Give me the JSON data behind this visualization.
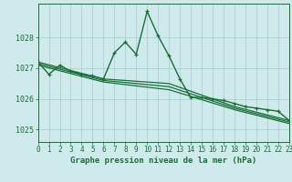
{
  "bg_color": "#ceeaea",
  "grid_color": "#aacccc",
  "line_color": "#1a6e3a",
  "title": "Graphe pression niveau de la mer (hPa)",
  "xlim": [
    0,
    23
  ],
  "ylim": [
    1024.6,
    1029.1
  ],
  "yticks": [
    1025,
    1026,
    1027,
    1028
  ],
  "xticks": [
    0,
    1,
    2,
    3,
    4,
    5,
    6,
    7,
    8,
    9,
    10,
    11,
    12,
    13,
    14,
    15,
    16,
    17,
    18,
    19,
    20,
    21,
    22,
    23
  ],
  "series": [
    {
      "x": [
        0,
        1,
        2,
        3,
        4,
        5,
        6,
        7,
        8,
        9,
        10,
        11,
        12,
        13,
        14,
        15,
        16,
        17,
        18,
        19,
        20,
        21,
        22,
        23
      ],
      "y": [
        1027.2,
        1026.8,
        1027.1,
        1026.9,
        1026.8,
        1026.75,
        1026.65,
        1027.5,
        1027.85,
        1027.45,
        1028.85,
        1028.05,
        1027.4,
        1026.65,
        1026.05,
        1026.05,
        1026.0,
        1025.95,
        1025.85,
        1025.75,
        1025.7,
        1025.65,
        1025.6,
        1025.3
      ],
      "linewidth": 1.0,
      "marker": "+",
      "markersize": 3.5
    },
    {
      "x": [
        0,
        6,
        12,
        18,
        23
      ],
      "y": [
        1027.2,
        1026.65,
        1026.5,
        1025.75,
        1025.3
      ],
      "linewidth": 0.9,
      "marker": null
    },
    {
      "x": [
        0,
        6,
        12,
        18,
        23
      ],
      "y": [
        1027.15,
        1026.6,
        1026.4,
        1025.7,
        1025.25
      ],
      "linewidth": 0.9,
      "marker": null
    },
    {
      "x": [
        0,
        6,
        12,
        18,
        23
      ],
      "y": [
        1027.1,
        1026.55,
        1026.3,
        1025.65,
        1025.2
      ],
      "linewidth": 0.9,
      "marker": null
    }
  ]
}
